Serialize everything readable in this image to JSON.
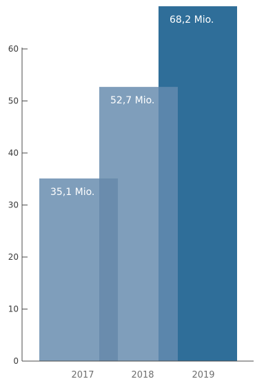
{
  "chart_data": {
    "type": "bar",
    "title": "",
    "xlabel": "",
    "ylabel": "",
    "categories": [
      "2017",
      "2018",
      "2019"
    ],
    "values": [
      35.1,
      52.7,
      68.2
    ],
    "data_labels": [
      "35,1 Mio.",
      "52,7 Mio.",
      "68,2 Mio."
    ],
    "y_ticks": [
      "0",
      "10",
      "20",
      "30",
      "40",
      "50",
      "60"
    ],
    "ylim": [
      0,
      60
    ],
    "grid": false,
    "legend": "none",
    "colors": [
      "#7f9ebb",
      "#7f9ebb",
      "#2f6e99"
    ],
    "overlap_colors": [
      "#6a8cad",
      "#5b86ac"
    ]
  }
}
